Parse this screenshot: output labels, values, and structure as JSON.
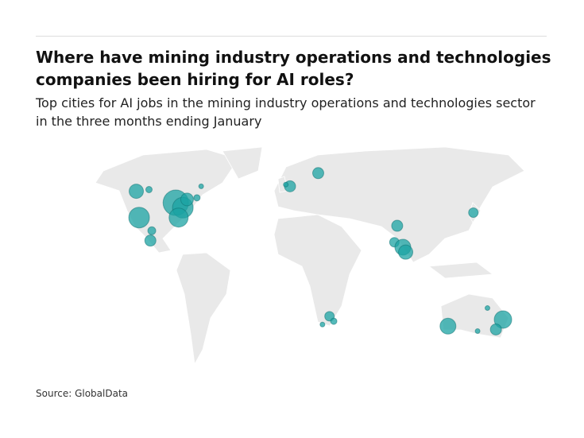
{
  "header": {
    "title": "Where have mining industry operations and technologies companies been hiring for AI roles?",
    "subtitle": "Top cities for AI jobs in the mining industry operations and technologies sector in the three months ending January"
  },
  "map": {
    "color": "#1ba3a3",
    "points": [
      {
        "lon": -109,
        "lat": 49,
        "size": 81
      },
      {
        "lon": -100,
        "lat": 50,
        "size": 16
      },
      {
        "lon": -107,
        "lat": 33,
        "size": 169
      },
      {
        "lon": -98,
        "lat": 25,
        "size": 25
      },
      {
        "lon": -99,
        "lat": 19,
        "size": 49
      },
      {
        "lon": -81,
        "lat": 42,
        "size": 256
      },
      {
        "lon": -76,
        "lat": 39,
        "size": 169
      },
      {
        "lon": -79,
        "lat": 33,
        "size": 144
      },
      {
        "lon": -73,
        "lat": 44,
        "size": 64
      },
      {
        "lon": -66,
        "lat": 45,
        "size": 16
      },
      {
        "lon": -63,
        "lat": 52,
        "size": 9
      },
      {
        "lon": 0,
        "lat": 52,
        "size": 49
      },
      {
        "lon": -3,
        "lat": 53,
        "size": 9
      },
      {
        "lon": 20,
        "lat": 60,
        "size": 49
      },
      {
        "lon": 76,
        "lat": 28,
        "size": 49
      },
      {
        "lon": 74,
        "lat": 18,
        "size": 36
      },
      {
        "lon": 80,
        "lat": 15,
        "size": 100
      },
      {
        "lon": 82,
        "lat": 12,
        "size": 81
      },
      {
        "lon": 130,
        "lat": 36,
        "size": 36
      },
      {
        "lon": 28,
        "lat": -27,
        "size": 36
      },
      {
        "lon": 31,
        "lat": -30,
        "size": 16
      },
      {
        "lon": 23,
        "lat": -32,
        "size": 9
      },
      {
        "lon": 112,
        "lat": -33,
        "size": 100
      },
      {
        "lon": 151,
        "lat": -29,
        "size": 121
      },
      {
        "lon": 146,
        "lat": -35,
        "size": 49
      },
      {
        "lon": 140,
        "lat": -22,
        "size": 9
      },
      {
        "lon": 133,
        "lat": -36,
        "size": 9
      }
    ]
  },
  "footer": {
    "source": "Source: GlobalData"
  }
}
